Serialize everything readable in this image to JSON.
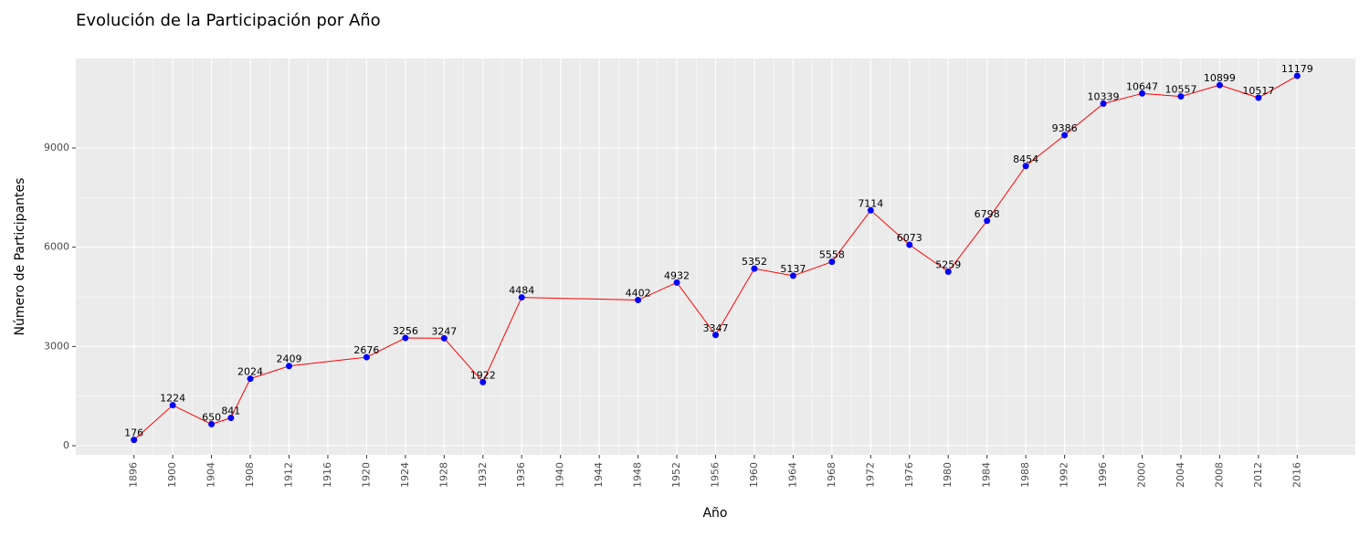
{
  "chart_data": {
    "type": "line",
    "title": "Evolución de la Participación por Año",
    "x_label": "Año",
    "y_label": "Número de Participantes",
    "x": [
      1896,
      1900,
      1904,
      1906,
      1908,
      1912,
      1920,
      1924,
      1928,
      1932,
      1936,
      1948,
      1952,
      1956,
      1960,
      1964,
      1968,
      1972,
      1976,
      1980,
      1984,
      1988,
      1992,
      1996,
      2000,
      2004,
      2008,
      2012,
      2016
    ],
    "values": [
      176,
      1224,
      650,
      841,
      2024,
      2409,
      2676,
      3256,
      3247,
      1922,
      4484,
      4402,
      4932,
      3347,
      5352,
      5137,
      5558,
      7114,
      6073,
      5259,
      6798,
      8454,
      9386,
      10339,
      10647,
      10557,
      10899,
      10517,
      11179
    ],
    "line_color": "#ff0000",
    "point_color": "#0000ff",
    "xlim": [
      1890,
      2022
    ],
    "ylim": [
      -276,
      11705
    ],
    "xticks": [
      1896,
      1900,
      1904,
      1908,
      1912,
      1916,
      1920,
      1924,
      1928,
      1932,
      1936,
      1940,
      1944,
      1948,
      1952,
      1956,
      1960,
      1964,
      1968,
      1972,
      1976,
      1980,
      1984,
      1988,
      1992,
      1996,
      2000,
      2004,
      2008,
      2012,
      2016
    ],
    "yticks": [
      0,
      3000,
      6000,
      9000
    ],
    "grid": true
  }
}
